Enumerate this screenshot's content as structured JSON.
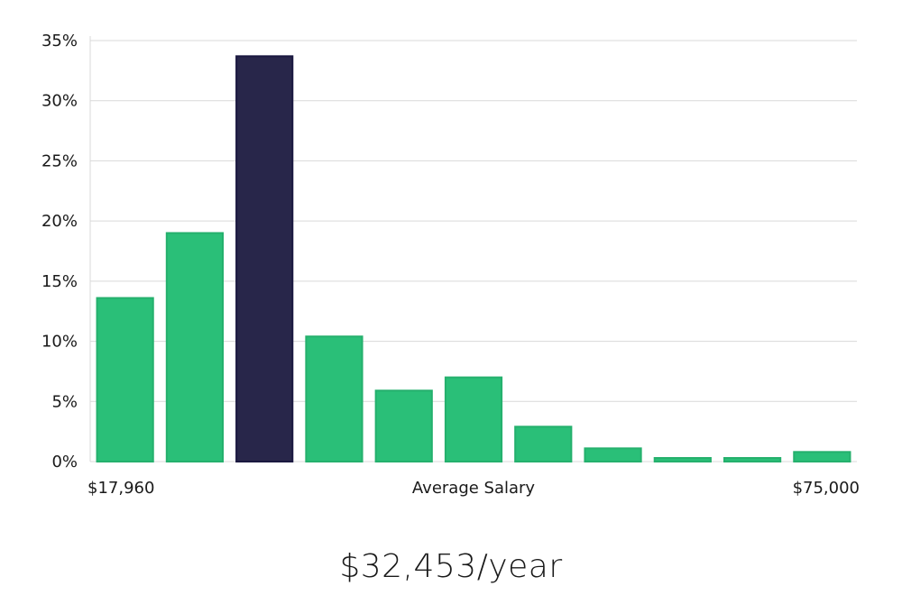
{
  "chart_data": {
    "type": "bar",
    "title": "",
    "xlabel": "Average Salary",
    "ylabel": "",
    "x_min_label": "$17,960",
    "x_max_label": "$75,000",
    "yticks": [
      "0%",
      "5%",
      "10%",
      "15%",
      "20%",
      "25%",
      "30%",
      "35%"
    ],
    "ylim": [
      0,
      35
    ],
    "values": [
      13.6,
      19.0,
      33.7,
      10.4,
      5.9,
      7.0,
      2.9,
      1.1,
      0.3,
      0.3,
      0.8
    ],
    "highlight_index": 2,
    "grid": true,
    "colors": {
      "bar": "#2abf78",
      "bar_stroke": "#25b06d",
      "highlight": "#28264a",
      "highlight_stroke": "#1a1840"
    }
  },
  "summary": {
    "salary": "$32,453/year"
  }
}
